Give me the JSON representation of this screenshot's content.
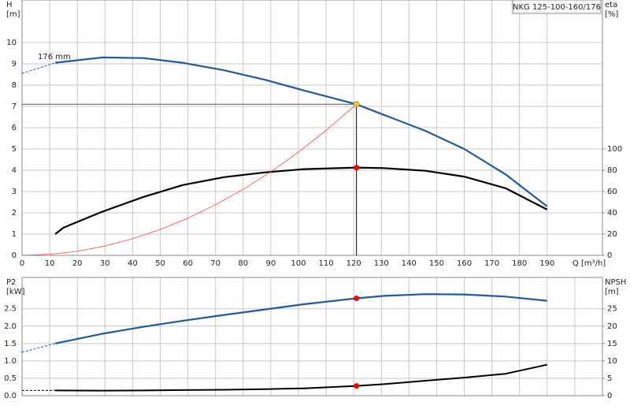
{
  "chart_data": [
    {
      "type": "line",
      "title": "NKG 125-100-160/176",
      "x_label": "Q [m³/h]",
      "y_label": "H",
      "y_unit": "[m]",
      "y2_label": "eta",
      "y2_unit": "[%]",
      "xlim": [
        0,
        210
      ],
      "xticks": [
        0,
        10,
        20,
        30,
        40,
        50,
        60,
        70,
        80,
        90,
        100,
        110,
        120,
        130,
        140,
        150,
        160,
        170,
        180,
        190
      ],
      "ylim": [
        0,
        12
      ],
      "yticks": [
        0,
        1,
        2,
        3,
        4,
        5,
        6,
        7,
        8,
        9,
        10
      ],
      "y2lim": [
        0,
        240
      ],
      "y2ticks": [
        0,
        20,
        40,
        60,
        80,
        100
      ],
      "grid": true,
      "annotations": [
        {
          "text": "176 mm"
        }
      ],
      "series": [
        {
          "color": "#1f5a9a",
          "width": 2.2,
          "dashed": false,
          "x": [
            12,
            29,
            44,
            58,
            73,
            88,
            102,
            121,
            131,
            146,
            160,
            175,
            190
          ],
          "values": [
            9.05,
            9.3,
            9.27,
            9.05,
            8.7,
            8.25,
            7.75,
            7.1,
            6.6,
            5.85,
            5.0,
            3.8,
            2.3
          ]
        },
        {
          "color": "#1f5a9a",
          "width": 1,
          "dashed": true,
          "x": [
            0,
            12
          ],
          "values": [
            8.55,
            9.05
          ]
        },
        {
          "color": "#000000",
          "width": 2.2,
          "dashed": false,
          "axis": "y2",
          "x": [
            12,
            15,
            29,
            44,
            58,
            73,
            88,
            102,
            121,
            131,
            146,
            160,
            175,
            190
          ],
          "values": [
            20,
            26,
            41,
            55,
            66,
            73.5,
            78,
            81,
            82.5,
            82,
            79.5,
            74,
            63,
            43
          ]
        },
        {
          "color": "#ff4040",
          "width": 0.8,
          "dashed": false,
          "x": [
            0,
            10,
            20,
            30,
            40,
            50,
            60,
            70,
            80,
            90,
            100,
            110,
            121
          ],
          "values": [
            0,
            0.05,
            0.19,
            0.44,
            0.78,
            1.21,
            1.75,
            2.38,
            3.1,
            3.93,
            4.85,
            5.87,
            7.1
          ]
        }
      ],
      "points": [
        {
          "x": 121,
          "y": 7.1,
          "color": "#f5c242"
        },
        {
          "x": 121,
          "y": 82.5,
          "axis": "y2",
          "color": "#ff0000"
        }
      ]
    },
    {
      "type": "line",
      "y_label": "P2",
      "y_unit": "[kW]",
      "y2_label": "NPSH",
      "y2_unit": "[m]",
      "xlim": [
        0,
        210
      ],
      "xgrid": [
        0,
        10,
        20,
        30,
        40,
        50,
        60,
        70,
        80,
        90,
        100,
        110,
        120,
        130,
        140,
        150,
        160,
        170,
        180,
        190,
        200
      ],
      "ylim": [
        0,
        3.4
      ],
      "yticks": [
        {
          "value": 0,
          "label": "0.0"
        },
        0.5,
        {
          "value": 1,
          "label": "1.0"
        },
        1.5,
        {
          "value": 2,
          "label": "2.0"
        },
        2.5
      ],
      "y2lim": [
        0,
        34
      ],
      "y2ticks": [
        0,
        5,
        10,
        15,
        20,
        25
      ],
      "grid": true,
      "series": [
        {
          "color": "#1f5a9a",
          "width": 2.2,
          "dashed": false,
          "x": [
            12,
            29,
            44,
            58,
            73,
            88,
            102,
            121,
            131,
            146,
            160,
            175,
            190
          ],
          "values": [
            1.5,
            1.78,
            1.98,
            2.15,
            2.32,
            2.48,
            2.63,
            2.8,
            2.87,
            2.92,
            2.91,
            2.85,
            2.73
          ]
        },
        {
          "color": "#1f5a9a",
          "width": 1,
          "dashed": true,
          "x": [
            0,
            12
          ],
          "values": [
            1.25,
            1.5
          ]
        },
        {
          "color": "#000000",
          "width": 2,
          "dashed": false,
          "axis": "y2",
          "x": [
            12,
            29,
            44,
            58,
            73,
            88,
            102,
            121,
            131,
            146,
            160,
            175,
            190
          ],
          "values": [
            1.5,
            1.45,
            1.5,
            1.6,
            1.7,
            1.85,
            2.1,
            2.8,
            3.3,
            4.3,
            5.2,
            6.3,
            8.9
          ]
        },
        {
          "color": "#000000",
          "width": 1,
          "dashed": true,
          "axis": "y2",
          "x": [
            0,
            12
          ],
          "values": [
            1.5,
            1.5
          ]
        }
      ],
      "points": [
        {
          "x": 121,
          "y": 2.8,
          "color": "#ff0000"
        },
        {
          "x": 121,
          "y": 2.8,
          "axis": "y2",
          "color": "#ff0000"
        }
      ]
    }
  ]
}
